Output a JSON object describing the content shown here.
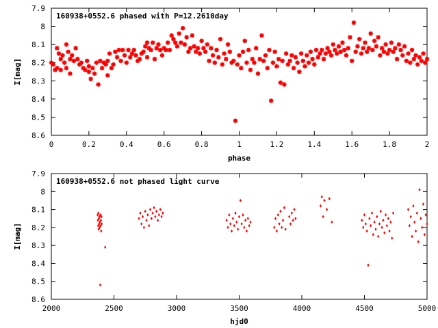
{
  "colors": {
    "series": "#ff0000",
    "axis": "#000000",
    "background": "#ffffff"
  },
  "chart_data": [
    {
      "type": "scatter",
      "title": "160938+0552.6 phased with P=12.2610day",
      "xlabel": "phase",
      "ylabel": "I[mag]",
      "xlim": [
        0,
        2
      ],
      "ylim": [
        8.6,
        7.9
      ],
      "y_inverted": true,
      "grid": false,
      "legend": "none",
      "marker": "star",
      "xticks": [
        0,
        0.2,
        0.4,
        0.6,
        0.8,
        1,
        1.2,
        1.4,
        1.6,
        1.8,
        2
      ],
      "xtick_labels": [
        "0",
        "0.2",
        "0.4",
        "0.6",
        "0.8",
        "1",
        "1.2",
        "1.4",
        "1.6",
        "1.8",
        "2"
      ],
      "yticks": [
        7.9,
        8,
        8.1,
        8.2,
        8.3,
        8.4,
        8.5,
        8.6
      ],
      "ytick_labels": [
        "7.9",
        "8",
        "8.1",
        "8.2",
        "8.3",
        "8.4",
        "8.5",
        "8.6"
      ],
      "points": [
        [
          0.0,
          8.2
        ],
        [
          0.01,
          8.21
        ],
        [
          0.02,
          8.24
        ],
        [
          0.03,
          8.12
        ],
        [
          0.03,
          8.23
        ],
        [
          0.04,
          8.15
        ],
        [
          0.05,
          8.18
        ],
        [
          0.05,
          8.24
        ],
        [
          0.06,
          8.16
        ],
        [
          0.07,
          8.2
        ],
        [
          0.08,
          8.23
        ],
        [
          0.08,
          8.1
        ],
        [
          0.09,
          8.14
        ],
        [
          0.1,
          8.18
        ],
        [
          0.1,
          8.26
        ],
        [
          0.11,
          8.16
        ],
        [
          0.12,
          8.19
        ],
        [
          0.13,
          8.12
        ],
        [
          0.14,
          8.18
        ],
        [
          0.15,
          8.21
        ],
        [
          0.16,
          8.2
        ],
        [
          0.17,
          8.23
        ],
        [
          0.18,
          8.24
        ],
        [
          0.19,
          8.19
        ],
        [
          0.2,
          8.22
        ],
        [
          0.2,
          8.25
        ],
        [
          0.21,
          8.29
        ],
        [
          0.22,
          8.23
        ],
        [
          0.23,
          8.26
        ],
        [
          0.24,
          8.2
        ],
        [
          0.25,
          8.32
        ],
        [
          0.26,
          8.19
        ],
        [
          0.27,
          8.23
        ],
        [
          0.28,
          8.2
        ],
        [
          0.29,
          8.21
        ],
        [
          0.3,
          8.19
        ],
        [
          0.3,
          8.27
        ],
        [
          0.31,
          8.15
        ],
        [
          0.32,
          8.23
        ],
        [
          0.33,
          8.21
        ],
        [
          0.34,
          8.14
        ],
        [
          0.35,
          8.17
        ],
        [
          0.36,
          8.13
        ],
        [
          0.37,
          8.19
        ],
        [
          0.38,
          8.13
        ],
        [
          0.39,
          8.16
        ],
        [
          0.4,
          8.2
        ],
        [
          0.41,
          8.13
        ],
        [
          0.42,
          8.17
        ],
        [
          0.43,
          8.15
        ],
        [
          0.44,
          8.13
        ],
        [
          0.45,
          8.16
        ],
        [
          0.46,
          8.19
        ],
        [
          0.47,
          8.18
        ],
        [
          0.48,
          8.15
        ],
        [
          0.49,
          8.14
        ],
        [
          0.5,
          8.11
        ],
        [
          0.51,
          8.17
        ],
        [
          0.51,
          8.09
        ],
        [
          0.52,
          8.12
        ],
        [
          0.53,
          8.13
        ],
        [
          0.54,
          8.09
        ],
        [
          0.55,
          8.18
        ],
        [
          0.56,
          8.12
        ],
        [
          0.57,
          8.1
        ],
        [
          0.58,
          8.13
        ],
        [
          0.59,
          8.16
        ],
        [
          0.6,
          8.12
        ],
        [
          0.61,
          8.13
        ],
        [
          0.62,
          8.09
        ],
        [
          0.63,
          8.13
        ],
        [
          0.64,
          8.05
        ],
        [
          0.65,
          8.07
        ],
        [
          0.66,
          8.09
        ],
        [
          0.67,
          8.11
        ],
        [
          0.68,
          8.04
        ],
        [
          0.69,
          8.09
        ],
        [
          0.7,
          8.01
        ],
        [
          0.71,
          8.1
        ],
        [
          0.72,
          8.06
        ],
        [
          0.73,
          8.14
        ],
        [
          0.74,
          8.12
        ],
        [
          0.75,
          8.05
        ],
        [
          0.76,
          8.11
        ],
        [
          0.77,
          8.14
        ],
        [
          0.78,
          8.12
        ],
        [
          0.79,
          8.15
        ],
        [
          0.8,
          8.08
        ],
        [
          0.81,
          8.12
        ],
        [
          0.82,
          8.14
        ],
        [
          0.83,
          8.1
        ],
        [
          0.84,
          8.19
        ],
        [
          0.85,
          8.12
        ],
        [
          0.86,
          8.16
        ],
        [
          0.87,
          8.2
        ],
        [
          0.88,
          8.13
        ],
        [
          0.89,
          8.17
        ],
        [
          0.9,
          8.07
        ],
        [
          0.91,
          8.21
        ],
        [
          0.92,
          8.15
        ],
        [
          0.93,
          8.18
        ],
        [
          0.94,
          8.1
        ],
        [
          0.95,
          8.14
        ],
        [
          0.96,
          8.2
        ],
        [
          0.97,
          8.19
        ],
        [
          0.98,
          8.52
        ],
        [
          0.99,
          8.21
        ],
        [
          1.0,
          8.16
        ],
        [
          1.01,
          8.23
        ],
        [
          1.02,
          8.14
        ],
        [
          1.03,
          8.08
        ],
        [
          1.04,
          8.2
        ],
        [
          1.05,
          8.13
        ],
        [
          1.06,
          8.24
        ],
        [
          1.07,
          8.18
        ],
        [
          1.08,
          8.2
        ],
        [
          1.09,
          8.12
        ],
        [
          1.1,
          8.26
        ],
        [
          1.11,
          8.18
        ],
        [
          1.12,
          8.05
        ],
        [
          1.13,
          8.19
        ],
        [
          1.14,
          8.16
        ],
        [
          1.15,
          8.23
        ],
        [
          1.16,
          8.13
        ],
        [
          1.17,
          8.41
        ],
        [
          1.18,
          8.2
        ],
        [
          1.19,
          8.14
        ],
        [
          1.2,
          8.22
        ],
        [
          1.21,
          8.18
        ],
        [
          1.22,
          8.31
        ],
        [
          1.23,
          8.19
        ],
        [
          1.24,
          8.32
        ],
        [
          1.25,
          8.15
        ],
        [
          1.26,
          8.21
        ],
        [
          1.27,
          8.19
        ],
        [
          1.28,
          8.16
        ],
        [
          1.29,
          8.23
        ],
        [
          1.3,
          8.17
        ],
        [
          1.31,
          8.2
        ],
        [
          1.32,
          8.25
        ],
        [
          1.33,
          8.15
        ],
        [
          1.34,
          8.19
        ],
        [
          1.35,
          8.22
        ],
        [
          1.36,
          8.16
        ],
        [
          1.37,
          8.2
        ],
        [
          1.38,
          8.14
        ],
        [
          1.39,
          8.18
        ],
        [
          1.4,
          8.21
        ],
        [
          1.41,
          8.13
        ],
        [
          1.42,
          8.17
        ],
        [
          1.43,
          8.15
        ],
        [
          1.44,
          8.13
        ],
        [
          1.45,
          8.18
        ],
        [
          1.46,
          8.15
        ],
        [
          1.47,
          8.12
        ],
        [
          1.48,
          8.14
        ],
        [
          1.49,
          8.16
        ],
        [
          1.5,
          8.1
        ],
        [
          1.51,
          8.13
        ],
        [
          1.52,
          8.15
        ],
        [
          1.53,
          8.11
        ],
        [
          1.54,
          8.14
        ],
        [
          1.55,
          8.09
        ],
        [
          1.56,
          8.13
        ],
        [
          1.57,
          8.16
        ],
        [
          1.58,
          8.12
        ],
        [
          1.59,
          8.06
        ],
        [
          1.6,
          8.19
        ],
        [
          1.61,
          7.98
        ],
        [
          1.62,
          8.14
        ],
        [
          1.63,
          8.11
        ],
        [
          1.64,
          8.07
        ],
        [
          1.65,
          8.15
        ],
        [
          1.66,
          8.12
        ],
        [
          1.67,
          8.09
        ],
        [
          1.68,
          8.14
        ],
        [
          1.69,
          8.12
        ],
        [
          1.7,
          8.04
        ],
        [
          1.71,
          8.13
        ],
        [
          1.72,
          8.08
        ],
        [
          1.73,
          8.11
        ],
        [
          1.74,
          8.06
        ],
        [
          1.75,
          8.16
        ],
        [
          1.76,
          8.12
        ],
        [
          1.77,
          8.14
        ],
        [
          1.78,
          8.1
        ],
        [
          1.79,
          8.15
        ],
        [
          1.8,
          8.13
        ],
        [
          1.81,
          8.09
        ],
        [
          1.82,
          8.14
        ],
        [
          1.83,
          8.12
        ],
        [
          1.84,
          8.18
        ],
        [
          1.85,
          8.1
        ],
        [
          1.86,
          8.13
        ],
        [
          1.87,
          8.16
        ],
        [
          1.88,
          8.11
        ],
        [
          1.89,
          8.19
        ],
        [
          1.9,
          8.15
        ],
        [
          1.91,
          8.2
        ],
        [
          1.92,
          8.13
        ],
        [
          1.93,
          8.18
        ],
        [
          1.94,
          8.16
        ],
        [
          1.95,
          8.21
        ],
        [
          1.96,
          8.17
        ],
        [
          1.97,
          8.19
        ],
        [
          1.98,
          8.15
        ],
        [
          1.99,
          8.2
        ],
        [
          2.0,
          8.18
        ]
      ]
    },
    {
      "type": "scatter",
      "title": "160938+0552.6 not phased light curve",
      "xlabel": "hjd0",
      "ylabel": "I[mag]",
      "xlim": [
        2000,
        5000
      ],
      "ylim": [
        8.6,
        7.9
      ],
      "y_inverted": true,
      "grid": false,
      "legend": "none",
      "marker": "diamond",
      "xticks": [
        2000,
        2500,
        3000,
        3500,
        4000,
        4500,
        5000
      ],
      "xtick_labels": [
        "2000",
        "2500",
        "3000",
        "3500",
        "4000",
        "4500",
        "5000"
      ],
      "yticks": [
        7.9,
        8,
        8.1,
        8.2,
        8.3,
        8.4,
        8.5,
        8.6
      ],
      "ytick_labels": [
        "7.9",
        "8",
        "8.1",
        "8.2",
        "8.3",
        "8.4",
        "8.5",
        "8.6"
      ],
      "points": [
        [
          2370,
          8.13
        ],
        [
          2372,
          8.16
        ],
        [
          2374,
          8.19
        ],
        [
          2376,
          8.12
        ],
        [
          2378,
          8.21
        ],
        [
          2380,
          8.15
        ],
        [
          2382,
          8.18
        ],
        [
          2384,
          8.14
        ],
        [
          2386,
          8.2
        ],
        [
          2388,
          8.17
        ],
        [
          2390,
          8.52
        ],
        [
          2392,
          8.13
        ],
        [
          2394,
          8.19
        ],
        [
          2396,
          8.16
        ],
        [
          2398,
          8.22
        ],
        [
          2400,
          8.14
        ],
        [
          2402,
          8.18
        ],
        [
          2430,
          8.31
        ],
        [
          2700,
          8.15
        ],
        [
          2710,
          8.12
        ],
        [
          2720,
          8.18
        ],
        [
          2730,
          8.14
        ],
        [
          2740,
          8.2
        ],
        [
          2750,
          8.11
        ],
        [
          2760,
          8.16
        ],
        [
          2770,
          8.13
        ],
        [
          2780,
          8.19
        ],
        [
          2790,
          8.1
        ],
        [
          2800,
          8.15
        ],
        [
          2810,
          8.12
        ],
        [
          2820,
          8.09
        ],
        [
          2830,
          8.14
        ],
        [
          2840,
          8.11
        ],
        [
          2850,
          8.16
        ],
        [
          2860,
          8.13
        ],
        [
          2870,
          8.1
        ],
        [
          2880,
          8.14
        ],
        [
          2890,
          8.12
        ],
        [
          3400,
          8.16
        ],
        [
          3410,
          8.2
        ],
        [
          3420,
          8.13
        ],
        [
          3430,
          8.18
        ],
        [
          3440,
          8.22
        ],
        [
          3450,
          8.15
        ],
        [
          3460,
          8.19
        ],
        [
          3470,
          8.12
        ],
        [
          3480,
          8.17
        ],
        [
          3490,
          8.21
        ],
        [
          3500,
          8.14
        ],
        [
          3510,
          8.05
        ],
        [
          3520,
          8.18
        ],
        [
          3530,
          8.13
        ],
        [
          3540,
          8.2
        ],
        [
          3550,
          8.16
        ],
        [
          3560,
          8.22
        ],
        [
          3570,
          8.15
        ],
        [
          3580,
          8.19
        ],
        [
          3590,
          8.17
        ],
        [
          3780,
          8.2
        ],
        [
          3790,
          8.15
        ],
        [
          3800,
          8.22
        ],
        [
          3810,
          8.13
        ],
        [
          3820,
          8.18
        ],
        [
          3830,
          8.11
        ],
        [
          3840,
          8.2
        ],
        [
          3850,
          8.16
        ],
        [
          3860,
          8.09
        ],
        [
          3870,
          8.21
        ],
        [
          3900,
          8.14
        ],
        [
          3910,
          8.18
        ],
        [
          3920,
          8.12
        ],
        [
          3930,
          8.16
        ],
        [
          3940,
          8.1
        ],
        [
          3950,
          8.15
        ],
        [
          4150,
          8.08
        ],
        [
          4160,
          8.03
        ],
        [
          4170,
          8.14
        ],
        [
          4180,
          8.05
        ],
        [
          4200,
          8.1
        ],
        [
          4220,
          8.04
        ],
        [
          4240,
          8.17
        ],
        [
          4480,
          8.16
        ],
        [
          4490,
          8.2
        ],
        [
          4500,
          8.13
        ],
        [
          4510,
          8.18
        ],
        [
          4520,
          8.22
        ],
        [
          4530,
          8.41
        ],
        [
          4540,
          8.15
        ],
        [
          4550,
          8.19
        ],
        [
          4560,
          8.12
        ],
        [
          4570,
          8.24
        ],
        [
          4580,
          8.17
        ],
        [
          4590,
          8.21
        ],
        [
          4600,
          8.14
        ],
        [
          4610,
          8.25
        ],
        [
          4620,
          8.18
        ],
        [
          4630,
          8.11
        ],
        [
          4640,
          8.2
        ],
        [
          4650,
          8.16
        ],
        [
          4660,
          8.23
        ],
        [
          4670,
          8.13
        ],
        [
          4680,
          8.19
        ],
        [
          4690,
          8.15
        ],
        [
          4700,
          8.22
        ],
        [
          4710,
          8.17
        ],
        [
          4720,
          8.26
        ],
        [
          4730,
          8.12
        ],
        [
          4850,
          8.1
        ],
        [
          4860,
          8.19
        ],
        [
          4870,
          8.14
        ],
        [
          4880,
          8.25
        ],
        [
          4890,
          8.08
        ],
        [
          4900,
          8.17
        ],
        [
          4910,
          8.22
        ],
        [
          4920,
          8.12
        ],
        [
          4930,
          8.28
        ],
        [
          4940,
          7.99
        ],
        [
          4950,
          8.15
        ],
        [
          4960,
          8.2
        ],
        [
          4970,
          8.07
        ],
        [
          4980,
          8.24
        ],
        [
          4990,
          8.13
        ],
        [
          5000,
          8.18
        ]
      ]
    }
  ]
}
